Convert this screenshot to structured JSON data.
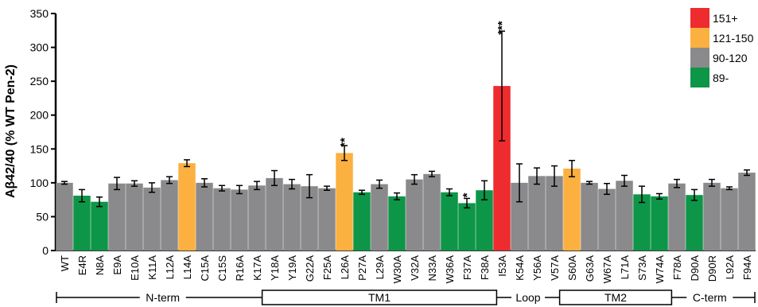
{
  "chart_data": {
    "type": "bar",
    "ylabel": "Aβ42/40 (% WT Pen-2)",
    "ylim": [
      0,
      350
    ],
    "yticks": [
      0,
      50,
      100,
      150,
      200,
      250,
      300,
      350
    ],
    "colors": {
      "151+": "#ee2b2e",
      "121-150": "#fbb040",
      "90-120": "#8a8a8c",
      "89-": "#0d9548"
    },
    "legend": [
      "151+",
      "121-150",
      "90-120",
      "89-"
    ],
    "legend_position": "top-right",
    "bars": [
      {
        "label": "WT",
        "value": 100,
        "err": 2,
        "class": "90-120"
      },
      {
        "label": "E4R",
        "value": 81,
        "err": 9,
        "class": "89-"
      },
      {
        "label": "N8A",
        "value": 72,
        "err": 7,
        "class": "89-"
      },
      {
        "label": "E9A",
        "value": 99,
        "err": 9,
        "class": "90-120"
      },
      {
        "label": "E10A",
        "value": 99,
        "err": 4,
        "class": "90-120"
      },
      {
        "label": "K11A",
        "value": 93,
        "err": 7,
        "class": "90-120"
      },
      {
        "label": "L12A",
        "value": 104,
        "err": 5,
        "class": "90-120"
      },
      {
        "label": "L14A",
        "value": 129,
        "err": 5,
        "class": "121-150"
      },
      {
        "label": "C15A",
        "value": 100,
        "err": 6,
        "class": "90-120"
      },
      {
        "label": "C15S",
        "value": 92,
        "err": 4,
        "class": "90-120"
      },
      {
        "label": "R16A",
        "value": 90,
        "err": 6,
        "class": "90-120"
      },
      {
        "label": "K17A",
        "value": 96,
        "err": 6,
        "class": "90-120"
      },
      {
        "label": "Y18A",
        "value": 107,
        "err": 11,
        "class": "90-120"
      },
      {
        "label": "Y19A",
        "value": 98,
        "err": 7,
        "class": "90-120"
      },
      {
        "label": "G22A",
        "value": 95,
        "err": 17,
        "class": "90-120"
      },
      {
        "label": "F25A",
        "value": 92,
        "err": 3,
        "class": "90-120"
      },
      {
        "label": "L26A",
        "value": 144,
        "err": 11,
        "class": "121-150",
        "sig": "**"
      },
      {
        "label": "P27A",
        "value": 86,
        "err": 3,
        "class": "89-"
      },
      {
        "label": "L29A",
        "value": 98,
        "err": 6,
        "class": "90-120"
      },
      {
        "label": "W30A",
        "value": 80,
        "err": 5,
        "class": "89-"
      },
      {
        "label": "V32A",
        "value": 105,
        "err": 7,
        "class": "90-120"
      },
      {
        "label": "N33A",
        "value": 113,
        "err": 4,
        "class": "90-120"
      },
      {
        "label": "W36A",
        "value": 86,
        "err": 5,
        "class": "89-"
      },
      {
        "label": "F37A",
        "value": 70,
        "err": 7,
        "class": "89-",
        "sig": "*"
      },
      {
        "label": "F38A",
        "value": 89,
        "err": 14,
        "class": "89-"
      },
      {
        "label": "I53A",
        "value": 243,
        "err": 81,
        "class": "151+",
        "sig": "***"
      },
      {
        "label": "K54A",
        "value": 100,
        "err": 28,
        "class": "90-120"
      },
      {
        "label": "Y56A",
        "value": 110,
        "err": 12,
        "class": "90-120"
      },
      {
        "label": "V57A",
        "value": 110,
        "err": 15,
        "class": "90-120"
      },
      {
        "label": "S60A",
        "value": 121,
        "err": 12,
        "class": "121-150"
      },
      {
        "label": "G63A",
        "value": 100,
        "err": 2,
        "class": "90-120"
      },
      {
        "label": "W67A",
        "value": 91,
        "err": 8,
        "class": "90-120"
      },
      {
        "label": "L71A",
        "value": 103,
        "err": 8,
        "class": "90-120"
      },
      {
        "label": "S73A",
        "value": 83,
        "err": 12,
        "class": "89-"
      },
      {
        "label": "W74A",
        "value": 80,
        "err": 4,
        "class": "89-"
      },
      {
        "label": "F78A",
        "value": 99,
        "err": 6,
        "class": "90-120"
      },
      {
        "label": "D90A",
        "value": 82,
        "err": 8,
        "class": "89-"
      },
      {
        "label": "D90R",
        "value": 100,
        "err": 5,
        "class": "90-120"
      },
      {
        "label": "L92A",
        "value": 92,
        "err": 2,
        "class": "90-120"
      },
      {
        "label": "F94A",
        "value": 115,
        "err": 4,
        "class": "90-120"
      }
    ],
    "regions": [
      {
        "label": "N-term",
        "from": "WT",
        "to": "K17A",
        "boxed": false
      },
      {
        "label": "TM1",
        "from": "Y18A",
        "to": "F38A",
        "boxed": true
      },
      {
        "label": "Loop",
        "from": "I53A",
        "to": "V57A",
        "boxed": false
      },
      {
        "label": "TM2",
        "from": "S60A",
        "to": "W74A",
        "boxed": true
      },
      {
        "label": "C-term",
        "from": "F78A",
        "to": "F94A",
        "boxed": false
      }
    ]
  }
}
